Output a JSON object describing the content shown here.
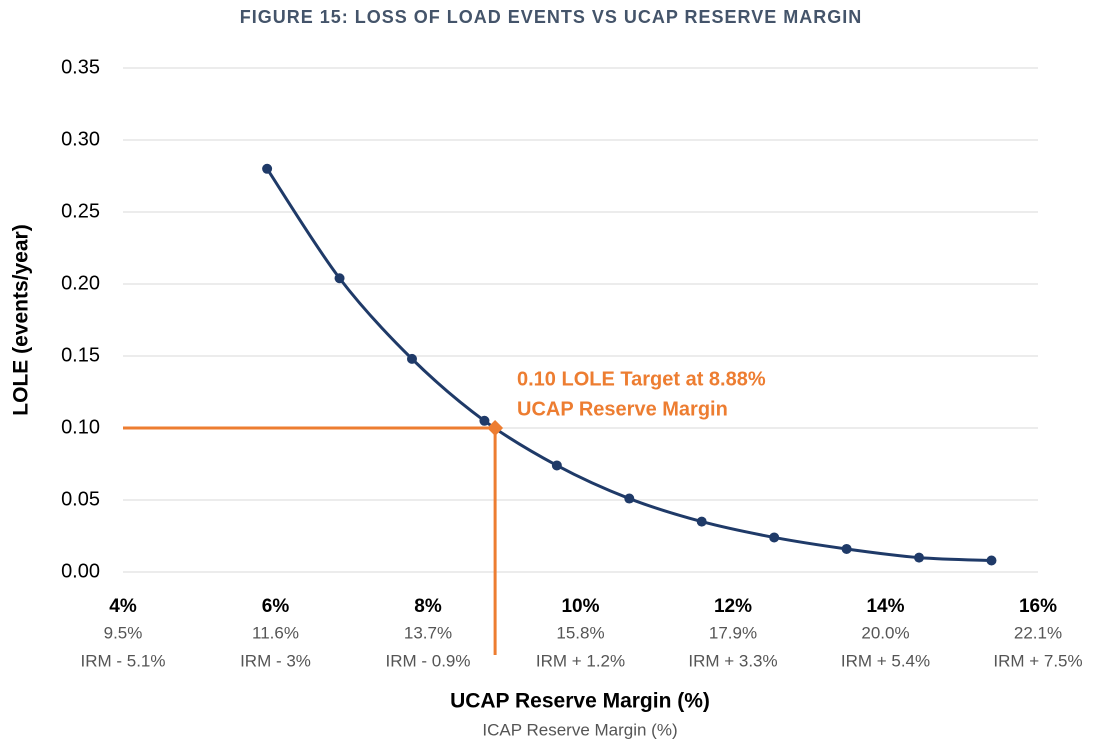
{
  "chart_data": {
    "type": "line",
    "title": "FIGURE 15: LOSS OF LOAD EVENTS VS UCAP RESERVE MARGIN",
    "x_label": "UCAP Reserve Margin (%)",
    "x_label_2": "ICAP Reserve Margin (%)",
    "y_label": "LOLE (events/year)",
    "xlim": [
      4,
      16
    ],
    "xticks": [
      {
        "value": 4,
        "label": "4%"
      },
      {
        "value": 6,
        "label": "6%"
      },
      {
        "value": 8,
        "label": "8%"
      },
      {
        "value": 10,
        "label": "10%"
      },
      {
        "value": 12,
        "label": "12%"
      },
      {
        "value": 14,
        "label": "14%"
      },
      {
        "value": 16,
        "label": "16%"
      }
    ],
    "xtick_labels_icap": [
      "9.5%",
      "11.6%",
      "13.7%",
      "15.8%",
      "17.9%",
      "20.0%",
      "22.1%"
    ],
    "xtick_labels_irm": [
      "IRM - 5.1%",
      "IRM - 3%",
      "IRM - 0.9%",
      "IRM + 1.2%",
      "IRM + 3.3%",
      "IRM  + 5.4%",
      "IRM + 7.5%"
    ],
    "ylim": [
      0,
      0.35
    ],
    "yticks": [
      {
        "value": 0,
        "label": "0.00"
      },
      0.05,
      {
        "value": 0.1,
        "label": "0.10"
      },
      0.15,
      {
        "value": 0.2,
        "label": "0.20"
      },
      0.25,
      {
        "value": 0.3,
        "label": "0.30"
      },
      0.35
    ],
    "grid": true,
    "series": [
      {
        "color": "#1f3a68",
        "x": [
          5.89,
          6.84,
          7.79,
          8.74,
          9.69,
          10.64,
          11.59,
          12.54,
          13.49,
          14.44,
          15.39
        ],
        "values": [
          0.28,
          0.204,
          0.148,
          0.105,
          0.074,
          0.051,
          0.035,
          0.024,
          0.016,
          0.01,
          0.008
        ]
      }
    ],
    "target": {
      "x": 8.88,
      "y": 0.1,
      "color": "#ed7d31",
      "label_lines": [
        "0.10 LOLE Target at 8.88%",
        "UCAP Reserve Margin"
      ]
    }
  }
}
